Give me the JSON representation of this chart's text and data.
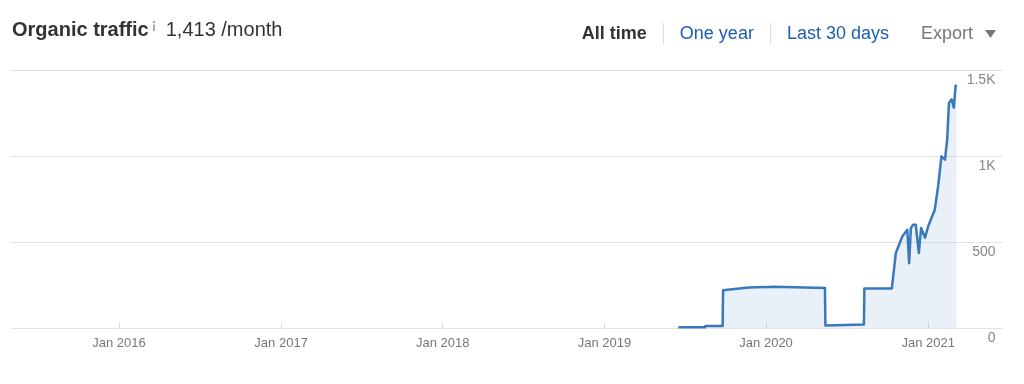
{
  "chart_data": {
    "type": "area",
    "title": "Organic traffic",
    "subtitle": "1,413 /month",
    "annotations": [
      "All time",
      "One year",
      "Last 30 days",
      "Export"
    ],
    "x": [
      "2019-06-18",
      "2019-08-17",
      "2019-08-18",
      "2019-09-26",
      "2019-09-27",
      "2019-11-24",
      "2020-01-20",
      "2020-05-14",
      "2020-05-15",
      "2020-08-10",
      "2020-08-11",
      "2020-10-12",
      "2020-10-21",
      "2020-11-05",
      "2020-11-16",
      "2020-11-20",
      "2020-11-24",
      "2020-11-29",
      "2020-12-05",
      "2020-12-12",
      "2020-12-17",
      "2020-12-26",
      "2021-01-02",
      "2021-01-17",
      "2021-01-25",
      "2021-02-01",
      "2021-02-09",
      "2021-02-14",
      "2021-02-18",
      "2021-02-24",
      "2021-03-01",
      "2021-03-05",
      "2021-03-07"
    ],
    "series": [
      {
        "color": "#3a78bd",
        "values": [
          4,
          4,
          12,
          12,
          220,
          235,
          240,
          233,
          14,
          20,
          230,
          230,
          436,
          534,
          571,
          377,
          581,
          601,
          601,
          436,
          581,
          525,
          591,
          688,
          833,
          998,
          979,
          1096,
          1310,
          1329,
          1281,
          1408,
          1413
        ]
      }
    ],
    "xlim": [
      "2015-05-01",
      "2021-06-20"
    ],
    "xticks": [
      {
        "value": "2016-01-01",
        "label": "Jan 2016"
      },
      {
        "value": "2017-01-01",
        "label": "Jan 2017"
      },
      {
        "value": "2018-01-01",
        "label": "Jan 2018"
      },
      {
        "value": "2019-01-01",
        "label": "Jan 2019"
      },
      {
        "value": "2020-01-01",
        "label": "Jan 2020"
      },
      {
        "value": "2021-01-01",
        "label": "Jan 2021"
      }
    ],
    "ylim": [
      0,
      1500
    ],
    "yticks": [
      0,
      500,
      {
        "value": 1000,
        "label": "1K"
      },
      {
        "value": 1500,
        "label": "1.5K"
      }
    ],
    "grid": "y",
    "marker": "none",
    "line_style": "solid"
  }
}
